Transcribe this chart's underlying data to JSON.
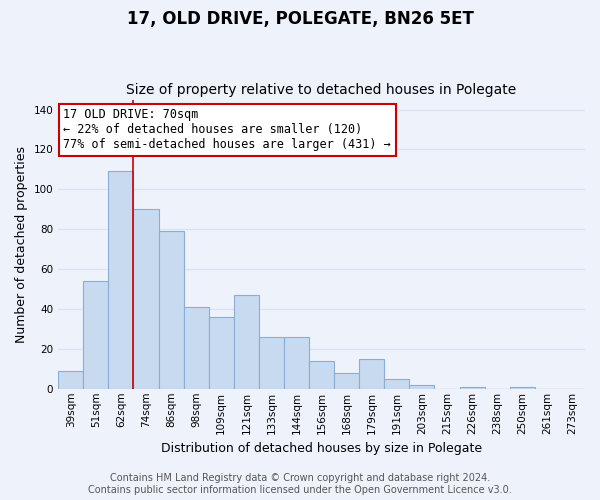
{
  "title": "17, OLD DRIVE, POLEGATE, BN26 5ET",
  "subtitle": "Size of property relative to detached houses in Polegate",
  "xlabel": "Distribution of detached houses by size in Polegate",
  "ylabel": "Number of detached properties",
  "categories": [
    "39sqm",
    "51sqm",
    "62sqm",
    "74sqm",
    "86sqm",
    "98sqm",
    "109sqm",
    "121sqm",
    "133sqm",
    "144sqm",
    "156sqm",
    "168sqm",
    "179sqm",
    "191sqm",
    "203sqm",
    "215sqm",
    "226sqm",
    "238sqm",
    "250sqm",
    "261sqm",
    "273sqm"
  ],
  "values": [
    9,
    54,
    109,
    90,
    79,
    41,
    36,
    47,
    26,
    26,
    14,
    8,
    15,
    5,
    2,
    0,
    1,
    0,
    1,
    0,
    0
  ],
  "bar_color": "#c8daf0",
  "bar_edge_color": "#8aadd4",
  "vline_x": 2.5,
  "vline_color": "#cc0000",
  "annotation_line1": "17 OLD DRIVE: 70sqm",
  "annotation_line2": "← 22% of detached houses are smaller (120)",
  "annotation_line3": "77% of semi-detached houses are larger (431) →",
  "annotation_box_color": "#ffffff",
  "annotation_box_edge_color": "#cc0000",
  "ylim": [
    0,
    145
  ],
  "yticks": [
    0,
    20,
    40,
    60,
    80,
    100,
    120,
    140
  ],
  "footer_line1": "Contains HM Land Registry data © Crown copyright and database right 2024.",
  "footer_line2": "Contains public sector information licensed under the Open Government Licence v3.0.",
  "background_color": "#eef3fb",
  "grid_color": "#d8e4f5",
  "title_fontsize": 12,
  "subtitle_fontsize": 10,
  "axis_label_fontsize": 9,
  "tick_fontsize": 7.5,
  "annotation_fontsize": 8.5,
  "footer_fontsize": 7
}
